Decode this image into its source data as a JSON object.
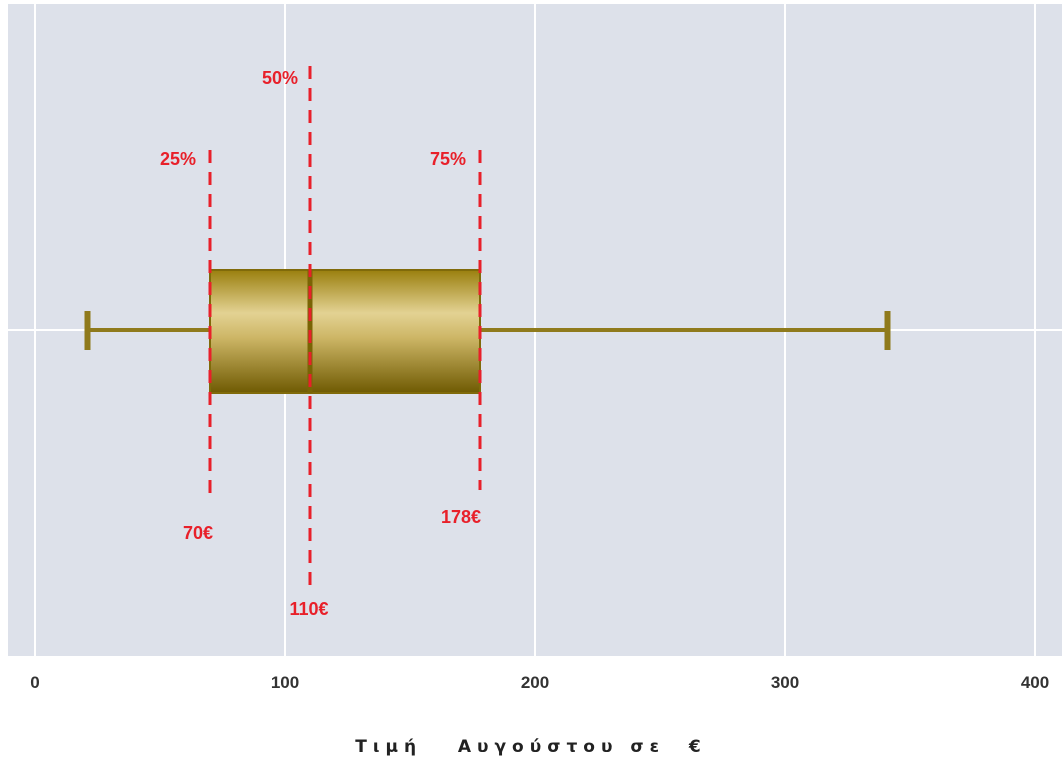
{
  "chart_data": {
    "type": "box",
    "orientation": "horizontal",
    "title": "",
    "xlabel": "Τιμή   Αυγούστου σε  €",
    "ylabel": "",
    "xlim": [
      -12,
      412
    ],
    "xticks": [
      0,
      100,
      200,
      300,
      400
    ],
    "tick_labels": [
      "0",
      "100",
      "200",
      "300",
      "400"
    ],
    "grid": true,
    "box": {
      "whisker_low": 21,
      "q1": 70,
      "median": 110,
      "q3": 178,
      "whisker_high": 341
    },
    "annotations": [
      {
        "id": "p25",
        "label": "25%",
        "value": 70
      },
      {
        "id": "p50",
        "label": "50%",
        "value": 110
      },
      {
        "id": "p75",
        "label": "75%",
        "value": 178
      },
      {
        "id": "v70",
        "label": "70€",
        "value": 70
      },
      {
        "id": "v110",
        "label": "110€",
        "value": 110
      },
      {
        "id": "v178",
        "label": "178€",
        "value": 178
      }
    ],
    "colors": {
      "plot_background": "#dde1ea",
      "grid": "#ffffff",
      "box_light": "#e0cf8c",
      "box_dark": "#7a6405",
      "whisker": "#8f7a1c",
      "annotation": "#e8202a"
    }
  }
}
